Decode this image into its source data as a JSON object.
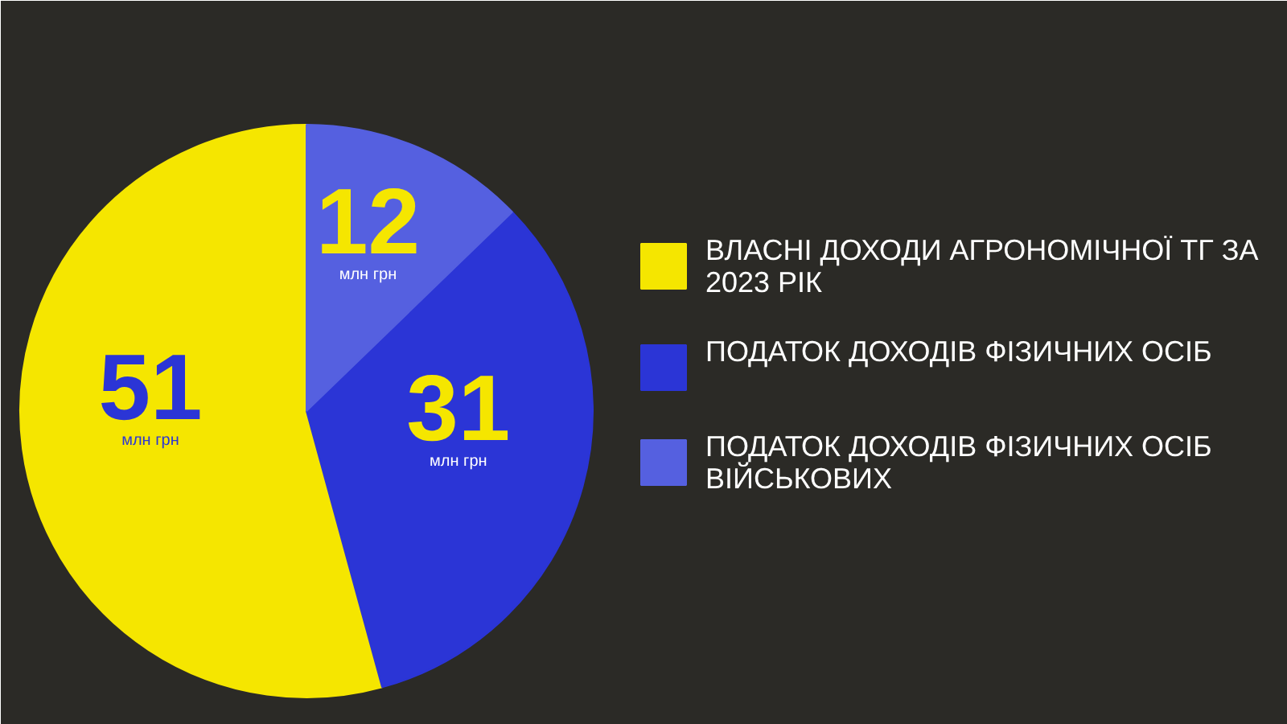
{
  "chart_data": {
    "type": "pie",
    "categories": [
      "ВЛАСНІ ДОХОДИ АГРОНОМІЧНОЇ ТГ ЗА 2023 РІК",
      "ПОДАТОК ДОХОДІВ ФІЗИЧНИХ ОСІБ",
      "ПОДАТОК ДОХОДІВ ФІЗИЧНИХ ОСІБ ВІЙСЬКОВИХ"
    ],
    "values": [
      51,
      31,
      12
    ],
    "colors": [
      "#f5e600",
      "#2b35d6",
      "#5560e0"
    ],
    "value_labels": [
      "51\nмлн грн",
      "31\nмлн грн",
      "12\nмлн грн"
    ],
    "legend": "right"
  }
}
